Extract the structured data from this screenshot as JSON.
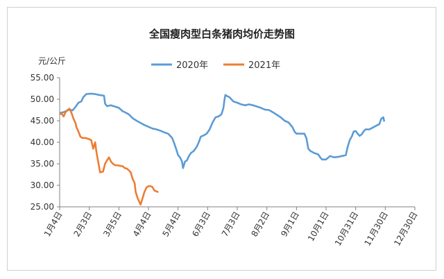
{
  "chart_data": {
    "type": "line",
    "title": "全国瘦肉型白条猪肉均价走势图",
    "y_unit": "元/公斤",
    "ylim": [
      25,
      55
    ],
    "y_ticks": [
      "55.00",
      "50.00",
      "45.00",
      "40.00",
      "35.00",
      "30.00",
      "25.00"
    ],
    "x_ticks": [
      "1月4日",
      "2月3日",
      "3月5日",
      "4月4日",
      "5月4日",
      "6月3日",
      "7月3日",
      "8月2日",
      "9月1日",
      "10月1日",
      "10月31日",
      "11月30日",
      "12月30日"
    ],
    "x_tick_days": [
      4,
      34,
      64,
      94,
      124,
      154,
      184,
      214,
      244,
      274,
      304,
      334,
      364
    ],
    "legend_position": "top",
    "grid": false,
    "series": [
      {
        "name": "2020年",
        "color": "#5b9bd5",
        "points": [
          [
            4,
            46.8
          ],
          [
            8,
            47.0
          ],
          [
            11,
            47.3
          ],
          [
            14,
            47.6
          ],
          [
            17,
            47.4
          ],
          [
            20,
            48.2
          ],
          [
            23,
            49.2
          ],
          [
            26,
            49.5
          ],
          [
            28,
            50.5
          ],
          [
            31,
            51.2
          ],
          [
            36,
            51.3
          ],
          [
            40,
            51.2
          ],
          [
            44,
            51.0
          ],
          [
            47,
            50.9
          ],
          [
            49,
            50.8
          ],
          [
            50,
            49.0
          ],
          [
            52,
            48.4
          ],
          [
            56,
            48.6
          ],
          [
            60,
            48.3
          ],
          [
            64,
            48.0
          ],
          [
            68,
            47.2
          ],
          [
            70,
            47.0
          ],
          [
            74,
            46.5
          ],
          [
            78,
            45.6
          ],
          [
            82,
            45.0
          ],
          [
            86,
            44.5
          ],
          [
            90,
            44.0
          ],
          [
            94,
            43.6
          ],
          [
            98,
            43.2
          ],
          [
            102,
            43.0
          ],
          [
            106,
            42.7
          ],
          [
            110,
            42.3
          ],
          [
            114,
            42.0
          ],
          [
            116,
            41.5
          ],
          [
            118,
            41.0
          ],
          [
            120,
            39.8
          ],
          [
            122,
            38.5
          ],
          [
            124,
            37.0
          ],
          [
            126,
            36.5
          ],
          [
            128,
            35.5
          ],
          [
            129,
            34.0
          ],
          [
            131,
            35.5
          ],
          [
            133,
            35.8
          ],
          [
            135,
            36.8
          ],
          [
            137,
            37.5
          ],
          [
            140,
            38.0
          ],
          [
            143,
            39.0
          ],
          [
            145,
            40.0
          ],
          [
            147,
            41.3
          ],
          [
            150,
            41.6
          ],
          [
            153,
            42.0
          ],
          [
            156,
            43.0
          ],
          [
            159,
            44.6
          ],
          [
            162,
            45.8
          ],
          [
            165,
            46.0
          ],
          [
            168,
            46.5
          ],
          [
            170,
            48.0
          ],
          [
            171,
            49.8
          ],
          [
            172,
            51.0
          ],
          [
            174,
            50.7
          ],
          [
            176,
            50.5
          ],
          [
            180,
            49.5
          ],
          [
            184,
            49.2
          ],
          [
            188,
            48.8
          ],
          [
            192,
            48.6
          ],
          [
            196,
            48.8
          ],
          [
            200,
            48.6
          ],
          [
            204,
            48.3
          ],
          [
            208,
            48.0
          ],
          [
            212,
            47.6
          ],
          [
            216,
            47.5
          ],
          [
            220,
            47.0
          ],
          [
            224,
            46.4
          ],
          [
            228,
            45.8
          ],
          [
            232,
            45.0
          ],
          [
            236,
            44.6
          ],
          [
            240,
            43.5
          ],
          [
            242,
            42.5
          ],
          [
            244,
            42.0
          ],
          [
            248,
            42.0
          ],
          [
            252,
            42.0
          ],
          [
            254,
            41.0
          ],
          [
            256,
            38.5
          ],
          [
            258,
            38.0
          ],
          [
            262,
            37.5
          ],
          [
            266,
            37.2
          ],
          [
            268,
            36.5
          ],
          [
            270,
            36.0
          ],
          [
            274,
            36.0
          ],
          [
            278,
            36.8
          ],
          [
            282,
            36.5
          ],
          [
            286,
            36.6
          ],
          [
            290,
            36.8
          ],
          [
            294,
            37.0
          ],
          [
            296,
            39.0
          ],
          [
            298,
            40.5
          ],
          [
            300,
            41.3
          ],
          [
            302,
            42.5
          ],
          [
            304,
            42.6
          ],
          [
            306,
            42.0
          ],
          [
            308,
            41.5
          ],
          [
            310,
            41.8
          ],
          [
            312,
            42.5
          ],
          [
            314,
            43.0
          ],
          [
            318,
            43.0
          ],
          [
            322,
            43.5
          ],
          [
            326,
            44.0
          ],
          [
            328,
            44.2
          ],
          [
            330,
            45.5
          ],
          [
            332,
            45.8
          ],
          [
            333,
            44.8
          ]
        ]
      },
      {
        "name": "2021年",
        "color": "#ed7d31",
        "points": [
          [
            4,
            46.5
          ],
          [
            6,
            46.7
          ],
          [
            8,
            46.0
          ],
          [
            10,
            47.0
          ],
          [
            12,
            47.5
          ],
          [
            14,
            47.8
          ],
          [
            16,
            46.8
          ],
          [
            18,
            45.5
          ],
          [
            20,
            44.5
          ],
          [
            21,
            43.5
          ],
          [
            23,
            42.5
          ],
          [
            25,
            41.3
          ],
          [
            27,
            41.0
          ],
          [
            30,
            41.0
          ],
          [
            33,
            40.8
          ],
          [
            36,
            40.5
          ],
          [
            38,
            38.5
          ],
          [
            40,
            40.0
          ],
          [
            41,
            38.2
          ],
          [
            42,
            36.8
          ],
          [
            43,
            35.5
          ],
          [
            45,
            33.0
          ],
          [
            48,
            33.2
          ],
          [
            50,
            35.0
          ],
          [
            52,
            35.8
          ],
          [
            54,
            36.5
          ],
          [
            56,
            35.5
          ],
          [
            58,
            35.0
          ],
          [
            60,
            34.7
          ],
          [
            64,
            34.6
          ],
          [
            68,
            34.4
          ],
          [
            70,
            34.0
          ],
          [
            72,
            33.9
          ],
          [
            74,
            33.5
          ],
          [
            76,
            33.0
          ],
          [
            78,
            31.5
          ],
          [
            80,
            30.5
          ],
          [
            81,
            28.5
          ],
          [
            83,
            27.0
          ],
          [
            85,
            26.0
          ],
          [
            86,
            25.5
          ],
          [
            88,
            27.0
          ],
          [
            90,
            28.5
          ],
          [
            92,
            29.5
          ],
          [
            94,
            29.8
          ],
          [
            96,
            29.8
          ],
          [
            98,
            29.6
          ],
          [
            100,
            28.8
          ],
          [
            102,
            28.6
          ],
          [
            104,
            28.4
          ]
        ]
      }
    ]
  }
}
